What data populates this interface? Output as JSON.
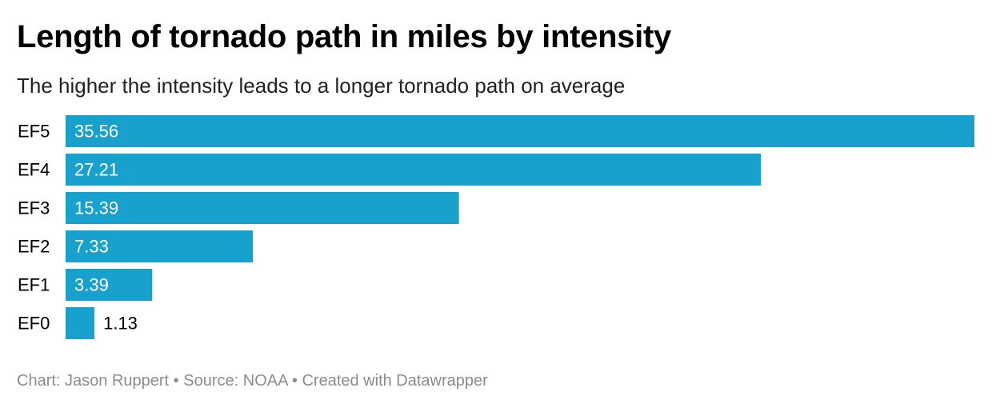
{
  "header": {
    "title": "Length of tornado path in miles by intensity",
    "subtitle": "The higher the intensity leads to a longer tornado path on average"
  },
  "footer": {
    "byline_label": "Chart:",
    "byline_value": "Jason Ruppert",
    "separator": "•",
    "source_label": "Source:",
    "source_value": "NOAA",
    "created_with": "Created with Datawrapper"
  },
  "colors": {
    "bar": "#18a1cd",
    "label_inside": "#ffffff",
    "label_outside": "#000000",
    "footer_text": "#8c8c8c"
  },
  "chart_data": {
    "type": "bar",
    "orientation": "horizontal",
    "categories": [
      "EF5",
      "EF4",
      "EF3",
      "EF2",
      "EF1",
      "EF0"
    ],
    "values": [
      35.56,
      27.21,
      15.39,
      7.33,
      3.39,
      1.13
    ],
    "value_labels": [
      "35.56",
      "27.21",
      "15.39",
      "7.33",
      "3.39",
      "1.13"
    ],
    "title": "Length of tornado path in miles by intensity",
    "subtitle": "The higher the intensity leads to a longer tornado path on average",
    "xlabel": "",
    "ylabel": "",
    "xlim": [
      0,
      35.56
    ],
    "grid": false,
    "legend": "none"
  }
}
